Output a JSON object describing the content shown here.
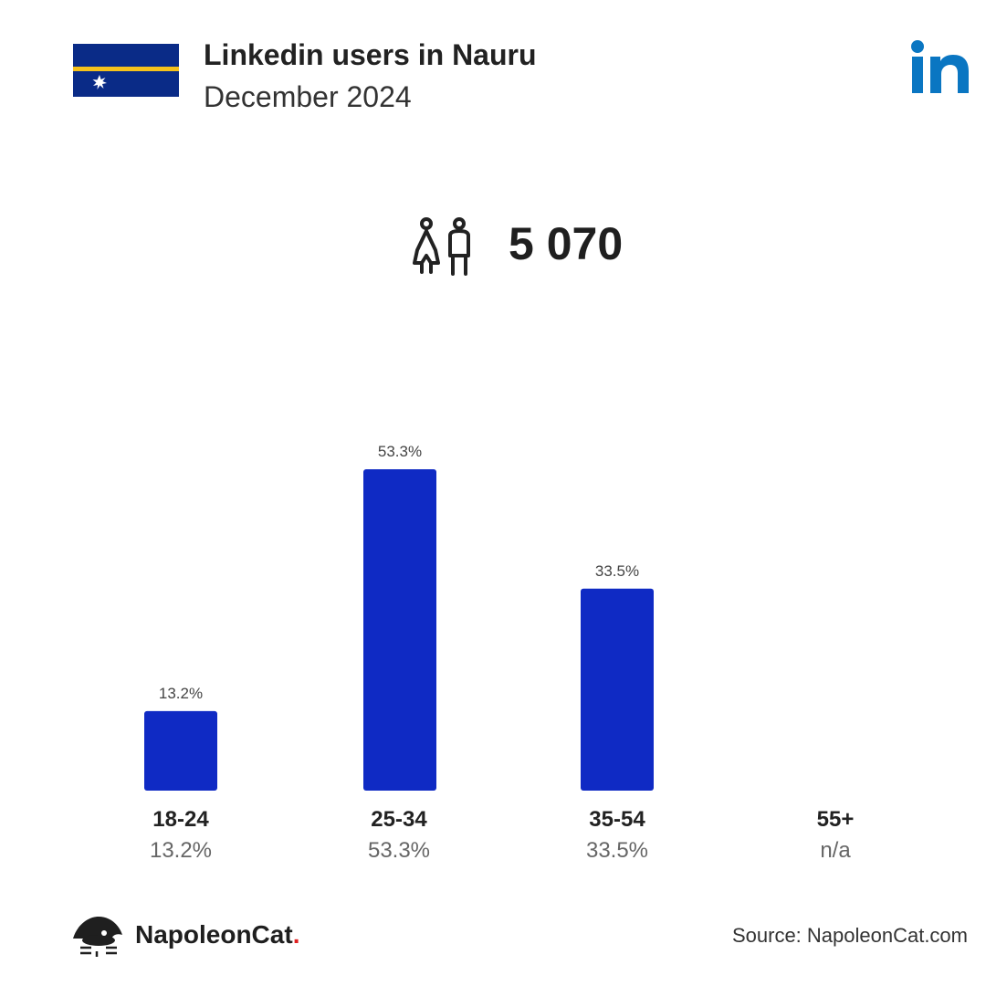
{
  "header": {
    "title": "Linkedin users in Nauru",
    "subtitle": "December 2024",
    "flag_icon": "nauru-flag-icon",
    "brand_icon": "linkedin-logo-icon"
  },
  "total": {
    "icon": "people-icon",
    "value": "5 070"
  },
  "categories": [
    {
      "label": "18-24",
      "value_text": "13.2%"
    },
    {
      "label": "25-34",
      "value_text": "53.3%"
    },
    {
      "label": "35-54",
      "value_text": "33.5%"
    },
    {
      "label": "55+",
      "value_text": "n/a"
    }
  ],
  "chart_data": {
    "type": "bar",
    "categories": [
      "18-24",
      "25-34",
      "35-54",
      "55+"
    ],
    "values": [
      13.2,
      53.3,
      33.5,
      null
    ],
    "data_labels": [
      "13.2%",
      "53.3%",
      "33.5%",
      ""
    ],
    "ylim": [
      0,
      53.3
    ],
    "grid": false,
    "title": "",
    "xlabel": "",
    "ylabel": ""
  },
  "colors": {
    "bar": "#0f2ac4",
    "linkedin": "#0a76c2",
    "flag_blue": "#0a2b87",
    "flag_yellow": "#f6c21b"
  },
  "footer": {
    "brand": "NapoleonCat",
    "brand_dot": ".",
    "logo_icon": "napoleoncat-logo-icon",
    "source": "Source: NapoleonCat.com"
  }
}
